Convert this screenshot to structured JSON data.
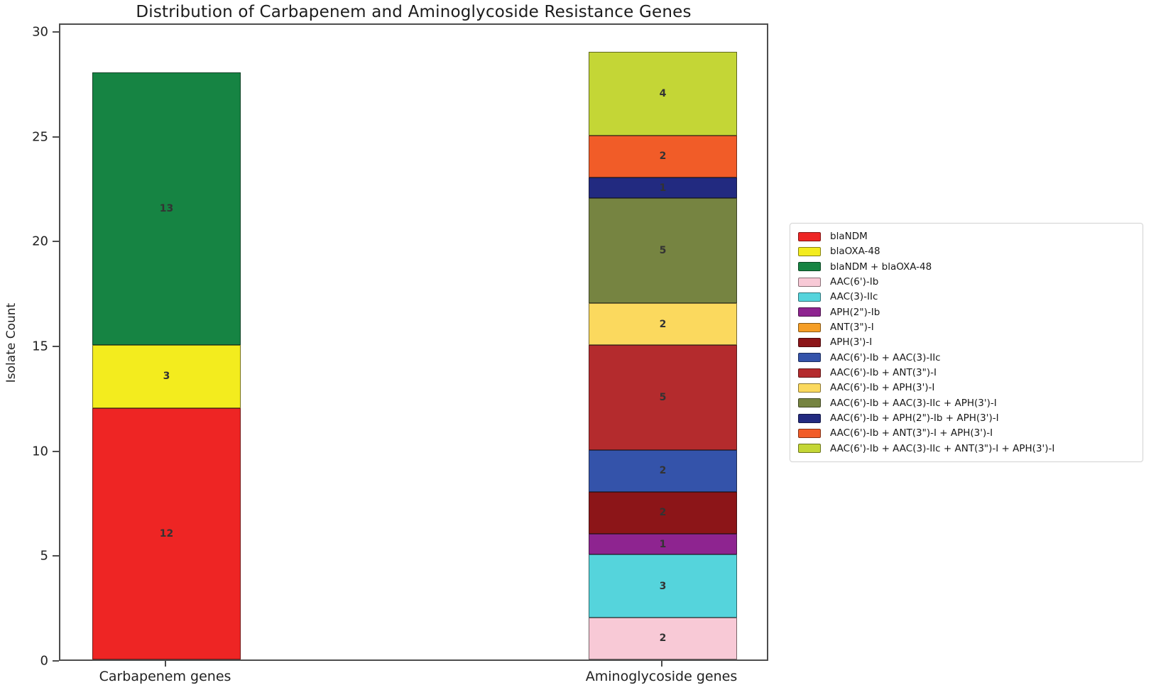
{
  "title": "Distribution of Carbapenem and Aminoglycoside Resistance Genes",
  "chart_data": {
    "type": "bar",
    "stacked": true,
    "title": "Distribution of Carbapenem and Aminoglycoside Resistance Genes",
    "xlabel": "",
    "ylabel": "Isolate Count",
    "ylim": [
      0,
      30.4
    ],
    "yticks": [
      0,
      5,
      10,
      15,
      20,
      25,
      30
    ],
    "grid": false,
    "legend_position": "right-outside",
    "categories": [
      "Carbapenem genes",
      "Aminoglycoside genes"
    ],
    "category_totals": [
      28,
      29
    ],
    "series": [
      {
        "name": "blaNDM",
        "color": "#ee2524",
        "values": [
          12,
          0
        ]
      },
      {
        "name": "blaOXA-48",
        "color": "#f3ec1e",
        "values": [
          3,
          0
        ]
      },
      {
        "name": "blaNDM + blaOXA-48",
        "color": "#168443",
        "values": [
          13,
          0
        ]
      },
      {
        "name": "AAC(6')-Ib",
        "color": "#f8c9d6",
        "values": [
          0,
          2
        ]
      },
      {
        "name": "AAC(3)-IIc",
        "color": "#55d4dc",
        "values": [
          0,
          3
        ]
      },
      {
        "name": "APH(2\")-Ib",
        "color": "#8e2490",
        "values": [
          0,
          1
        ]
      },
      {
        "name": "ANT(3\")-I",
        "color": "#f59e26",
        "values": [
          0,
          0
        ]
      },
      {
        "name": "APH(3')-I",
        "color": "#8c1518",
        "values": [
          0,
          2
        ]
      },
      {
        "name": "AAC(6')-Ib + AAC(3)-IIc",
        "color": "#3453aa",
        "values": [
          0,
          2
        ]
      },
      {
        "name": "AAC(6')-Ib + ANT(3\")-I",
        "color": "#b42b2d",
        "values": [
          0,
          5
        ]
      },
      {
        "name": "AAC(6')-Ib + APH(3')-I",
        "color": "#fbd95e",
        "values": [
          0,
          2
        ]
      },
      {
        "name": "AAC(6')-Ib + AAC(3)-IIc + APH(3')-I",
        "color": "#768441",
        "values": [
          0,
          5
        ]
      },
      {
        "name": "AAC(6')-Ib + APH(2\")-Ib + APH(3')-I",
        "color": "#222a80",
        "values": [
          0,
          1
        ]
      },
      {
        "name": "AAC(6')-Ib + ANT(3\")-I + APH(3')-I",
        "color": "#f15c28",
        "values": [
          0,
          2
        ]
      },
      {
        "name": "AAC(6')-Ib + AAC(3)-IIc + ANT(3\")-I + APH(3')-I",
        "color": "#c4d636",
        "values": [
          0,
          4
        ]
      }
    ]
  }
}
